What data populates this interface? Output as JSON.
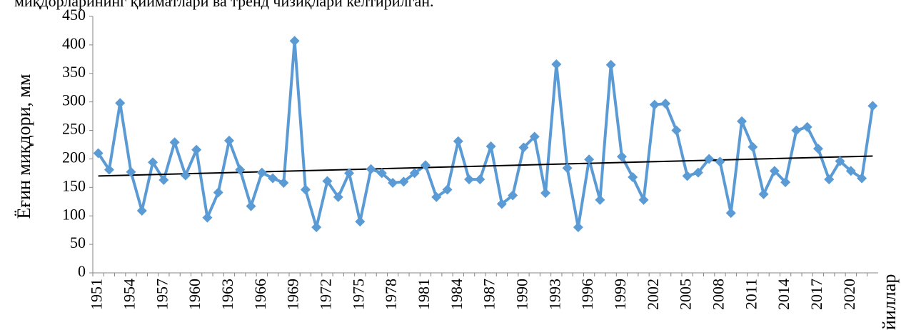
{
  "chart_data": {
    "type": "line",
    "caption": "миқдорларининг қийматлари ва тренд чизиқлари келтирилган.",
    "y_label": "Ёғин миқдори, мм",
    "x_label": "йиллар",
    "categories": [
      "1951",
      null,
      null,
      "1954",
      null,
      null,
      "1957",
      null,
      null,
      "1960",
      null,
      null,
      "1963",
      null,
      null,
      "1966",
      null,
      null,
      "1969",
      null,
      null,
      "1972",
      null,
      null,
      "1975",
      null,
      null,
      "1978",
      null,
      null,
      "1981",
      null,
      null,
      "1984",
      null,
      null,
      "1987",
      null,
      null,
      "1990",
      null,
      null,
      "1993",
      null,
      null,
      "1996",
      null,
      null,
      "1999",
      null,
      null,
      "2002",
      null,
      null,
      "2005",
      null,
      null,
      "2008",
      null,
      null,
      "2011",
      null,
      null,
      "2014",
      null,
      null,
      "2017",
      null,
      null,
      "2020",
      null,
      null
    ],
    "values": [
      210,
      181,
      298,
      177,
      109,
      194,
      163,
      229,
      171,
      216,
      97,
      141,
      232,
      181,
      117,
      176,
      166,
      158,
      407,
      146,
      80,
      161,
      133,
      175,
      90,
      182,
      175,
      158,
      160,
      175,
      189,
      133,
      146,
      231,
      164,
      164,
      222,
      121,
      136,
      220,
      239,
      140,
      366,
      184,
      80,
      199,
      128,
      365,
      204,
      168,
      128,
      295,
      297,
      250,
      170,
      176,
      200,
      195,
      105,
      266,
      221,
      138,
      179,
      159,
      250,
      256,
      218,
      164,
      196,
      179,
      166,
      293
    ],
    "color": "#5b9bd5",
    "trend_line": {
      "start": 170,
      "end": 205,
      "color": "#000000"
    },
    "ylim": [
      0,
      450
    ],
    "yticks": [
      0,
      50,
      100,
      150,
      200,
      250,
      300,
      350,
      400,
      450
    ],
    "grid": false
  }
}
